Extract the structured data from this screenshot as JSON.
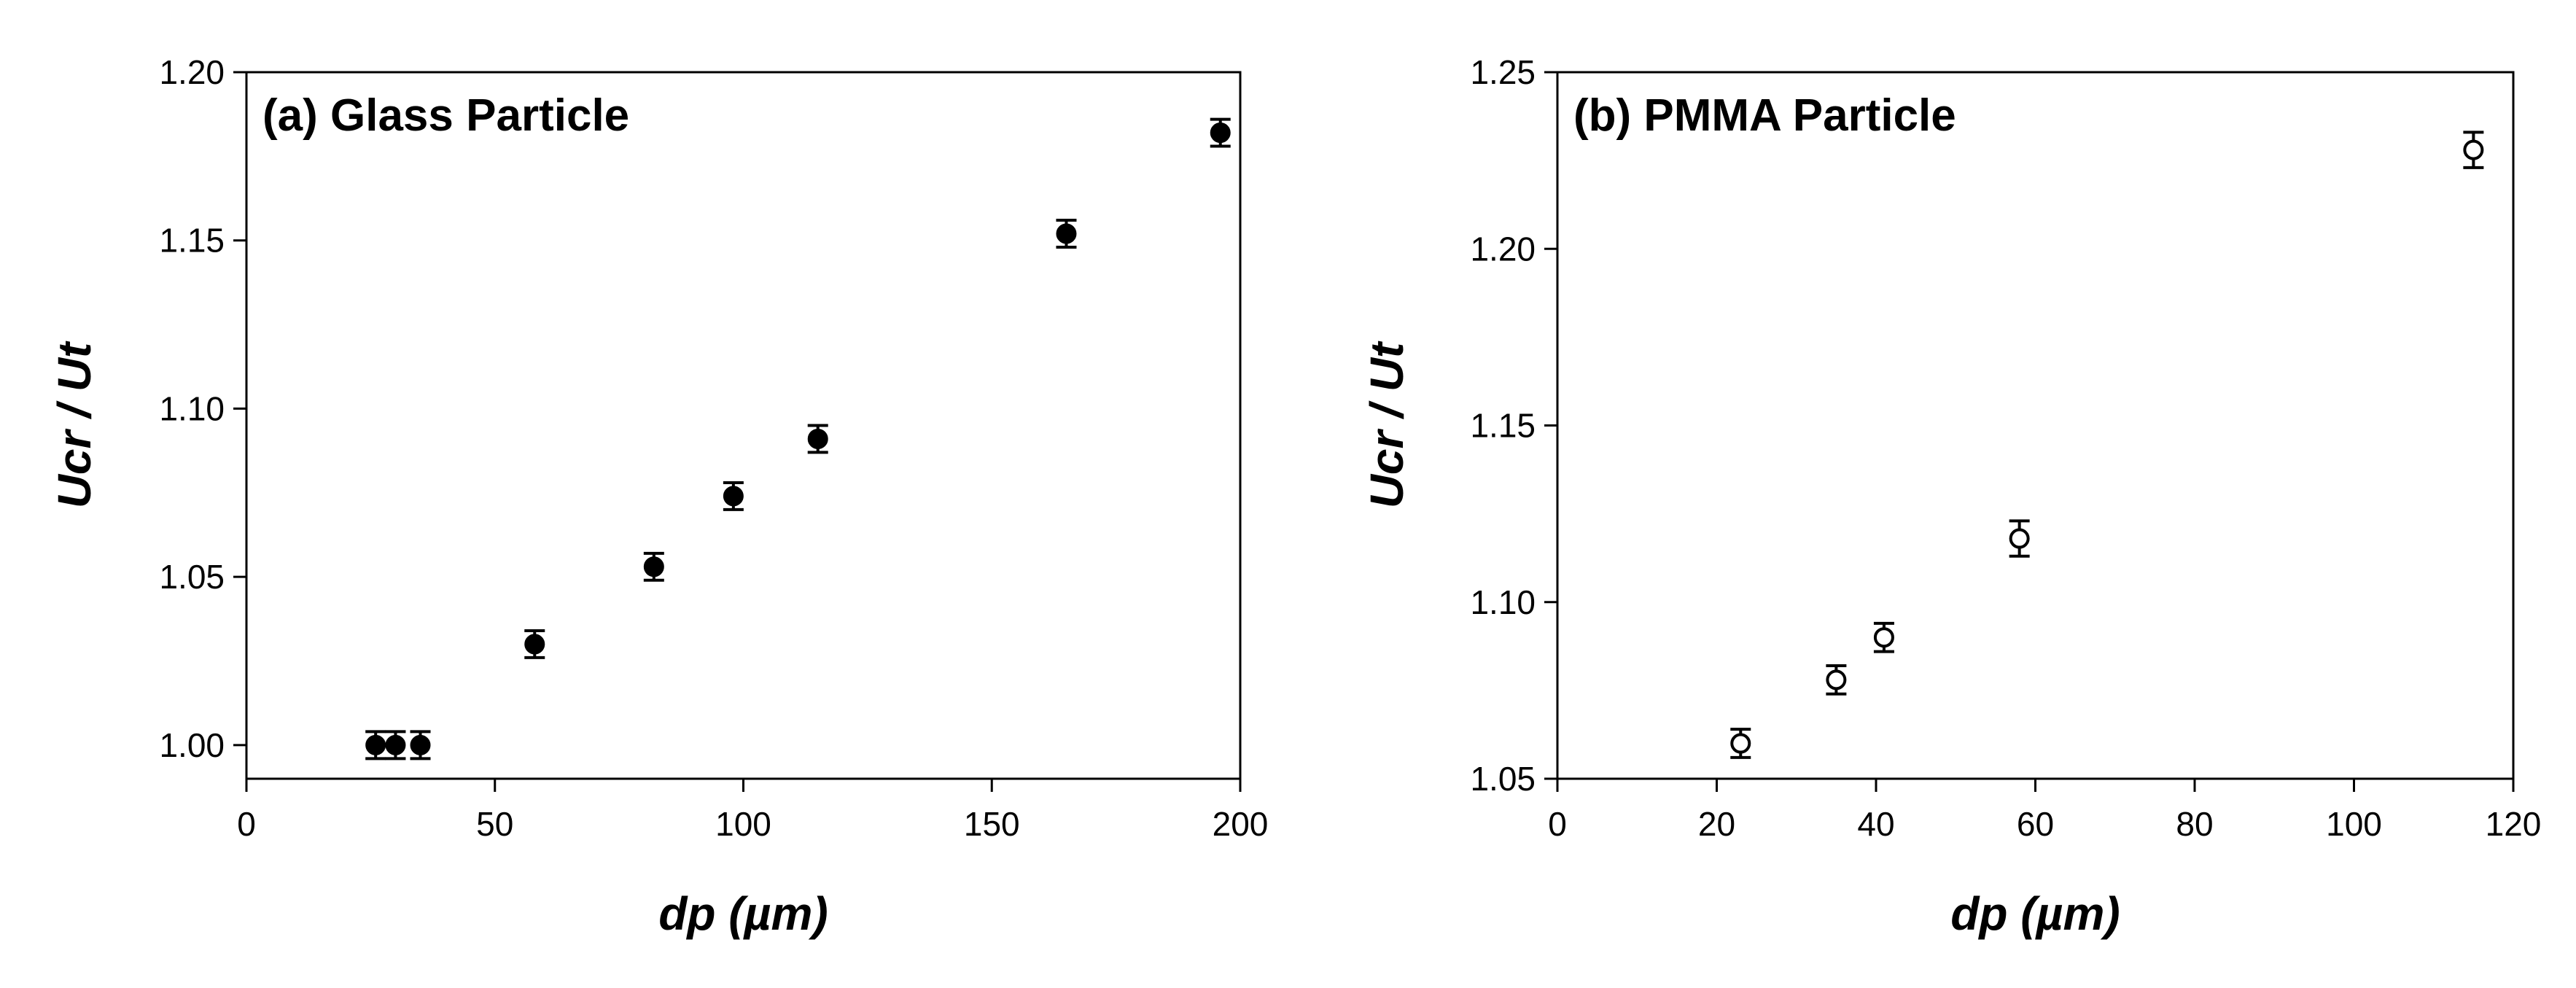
{
  "chart_data": [
    {
      "type": "scatter",
      "title": "(a) Glass Particle",
      "xlabel": "dp (µm)",
      "ylabel": "Ucr / Ut",
      "x": [
        26,
        30,
        35,
        58,
        82,
        98,
        115,
        165,
        196
      ],
      "values": [
        1.0,
        1.0,
        1.0,
        1.03,
        1.053,
        1.074,
        1.091,
        1.152,
        1.182
      ],
      "errors": [
        0.004,
        0.004,
        0.004,
        0.004,
        0.004,
        0.004,
        0.004,
        0.004,
        0.004
      ],
      "color": "#000000",
      "filled": true,
      "xlim": [
        0,
        200
      ],
      "ylim": [
        0.99,
        1.2
      ],
      "xticks": [
        0,
        50,
        100,
        150,
        200
      ],
      "yticks": [
        {
          "value": 1,
          "label": "1.00"
        },
        {
          "value": 1.05,
          "label": "1.05"
        },
        {
          "value": 1.1,
          "label": "1.10"
        },
        {
          "value": 1.15,
          "label": "1.15"
        },
        {
          "value": 1.2,
          "label": "1.20"
        }
      ]
    },
    {
      "type": "scatter",
      "title": "(b) PMMA Particle",
      "xlabel": "dp (µm)",
      "ylabel": "Ucr / Ut",
      "x": [
        23,
        35,
        41,
        58,
        115
      ],
      "values": [
        1.06,
        1.078,
        1.09,
        1.118,
        1.228
      ],
      "errors": [
        0.004,
        0.004,
        0.004,
        0.005,
        0.005
      ],
      "color": "#000000",
      "filled": false,
      "xlim": [
        0,
        120
      ],
      "ylim": [
        1.05,
        1.25
      ],
      "xticks": [
        0,
        20,
        40,
        60,
        80,
        100,
        120
      ],
      "yticks": [
        {
          "value": 1.05,
          "label": "1.05"
        },
        {
          "value": 1.1,
          "label": "1.10"
        },
        {
          "value": 1.15,
          "label": "1.15"
        },
        {
          "value": 1.2,
          "label": "1.20"
        },
        {
          "value": 1.25,
          "label": "1.25"
        }
      ]
    }
  ]
}
